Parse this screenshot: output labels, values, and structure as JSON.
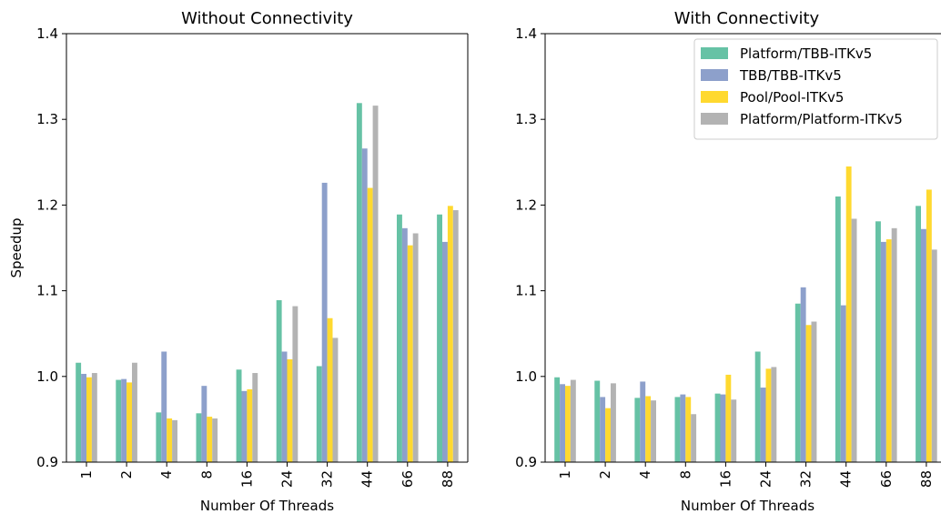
{
  "chart_data": [
    {
      "type": "bar",
      "title": "Without Connectivity",
      "xlabel": "Number Of Threads",
      "ylabel": "Speedup",
      "ylim": [
        0.9,
        1.4
      ],
      "yticks": [
        "0.9",
        "1.0",
        "1.1",
        "1.2",
        "1.3",
        "1.4"
      ],
      "categories": [
        "1",
        "2",
        "4",
        "8",
        "16",
        "24",
        "32",
        "44",
        "66",
        "88"
      ],
      "series": [
        {
          "name": "Platform/TBB-ITKv5",
          "color": "#66c2a5",
          "values": [
            1.016,
            0.996,
            0.958,
            0.957,
            1.008,
            1.089,
            1.012,
            1.319,
            1.189,
            1.189
          ]
        },
        {
          "name": "TBB/TBB-ITKv5",
          "color": "#8da0cb",
          "values": [
            1.003,
            0.997,
            1.029,
            0.989,
            0.983,
            1.029,
            1.226,
            1.266,
            1.173,
            1.157
          ]
        },
        {
          "name": "Pool/Pool-ITKv5",
          "color": "#ffd92f",
          "values": [
            0.999,
            0.993,
            0.951,
            0.953,
            0.985,
            1.02,
            1.068,
            1.22,
            1.153,
            1.199
          ]
        },
        {
          "name": "Platform/Platform-ITKv5",
          "color": "#b3b3b3",
          "values": [
            1.004,
            1.016,
            0.949,
            0.951,
            1.004,
            1.082,
            1.045,
            1.316,
            1.167,
            1.194
          ]
        }
      ]
    },
    {
      "type": "bar",
      "title": "With Connectivity",
      "xlabel": "Number Of Threads",
      "ylabel": "",
      "ylim": [
        0.9,
        1.4
      ],
      "yticks": [
        "0.9",
        "1.0",
        "1.1",
        "1.2",
        "1.3",
        "1.4"
      ],
      "categories": [
        "1",
        "2",
        "4",
        "8",
        "16",
        "24",
        "32",
        "44",
        "66",
        "88"
      ],
      "legend": "top-right",
      "series": [
        {
          "name": "Platform/TBB-ITKv5",
          "color": "#66c2a5",
          "values": [
            0.999,
            0.995,
            0.975,
            0.976,
            0.98,
            1.029,
            1.085,
            1.21,
            1.181,
            1.199
          ]
        },
        {
          "name": "TBB/TBB-ITKv5",
          "color": "#8da0cb",
          "values": [
            0.991,
            0.976,
            0.994,
            0.979,
            0.979,
            0.987,
            1.104,
            1.083,
            1.157,
            1.172
          ]
        },
        {
          "name": "Pool/Pool-ITKv5",
          "color": "#ffd92f",
          "values": [
            0.989,
            0.963,
            0.977,
            0.976,
            1.002,
            1.009,
            1.06,
            1.245,
            1.16,
            1.218
          ]
        },
        {
          "name": "Platform/Platform-ITKv5",
          "color": "#b3b3b3",
          "values": [
            0.996,
            0.992,
            0.972,
            0.956,
            0.973,
            1.011,
            1.064,
            1.184,
            1.173,
            1.148
          ]
        }
      ]
    }
  ]
}
